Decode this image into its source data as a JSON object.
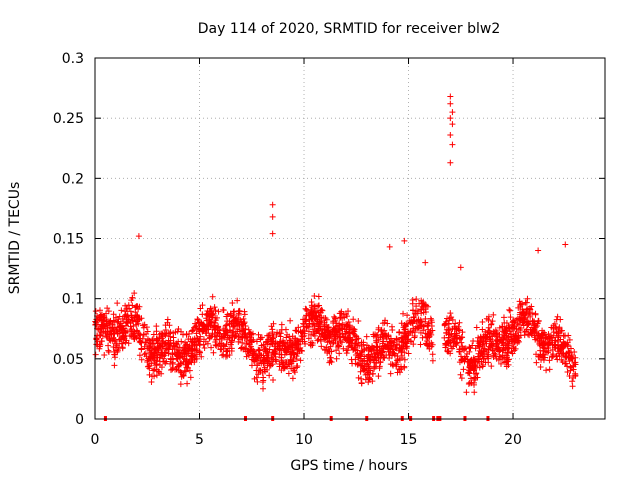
{
  "chart_data": {
    "type": "scatter",
    "title": "Day 114 of 2020, SRMTID for receiver blw2",
    "xlabel": "GPS time / hours",
    "ylabel": "SRMTID / TECUs",
    "xlim": [
      0,
      24.4
    ],
    "ylim": [
      0,
      0.3
    ],
    "xticks": [
      0,
      5,
      10,
      15,
      20
    ],
    "xtick_labels": [
      "0",
      "5",
      "10",
      "15",
      "20"
    ],
    "yticks": [
      0,
      0.05,
      0.1,
      0.15,
      0.2,
      0.25,
      0.3
    ],
    "ytick_labels": [
      "0",
      "0.05",
      "0.1",
      "0.15",
      "0.2",
      "0.25",
      "0.3"
    ],
    "grid": true,
    "marker": "+",
    "color": "#ff0000",
    "series": [
      {
        "name": "SRMTID",
        "x_range": [
          0,
          23
        ],
        "typical_range": [
          0.02,
          0.11
        ]
      }
    ],
    "peaks": [
      {
        "x": 2.1,
        "y": 0.152
      },
      {
        "x": 8.5,
        "y": 0.178
      },
      {
        "x": 8.5,
        "y": 0.168
      },
      {
        "x": 8.5,
        "y": 0.154
      },
      {
        "x": 14.1,
        "y": 0.143
      },
      {
        "x": 14.8,
        "y": 0.148
      },
      {
        "x": 15.8,
        "y": 0.13
      },
      {
        "x": 17.0,
        "y": 0.268
      },
      {
        "x": 17.0,
        "y": 0.262
      },
      {
        "x": 17.1,
        "y": 0.255
      },
      {
        "x": 17.0,
        "y": 0.25
      },
      {
        "x": 17.1,
        "y": 0.245
      },
      {
        "x": 17.0,
        "y": 0.236
      },
      {
        "x": 17.1,
        "y": 0.228
      },
      {
        "x": 17.0,
        "y": 0.213
      },
      {
        "x": 17.5,
        "y": 0.126
      },
      {
        "x": 21.2,
        "y": 0.14
      },
      {
        "x": 22.5,
        "y": 0.145
      }
    ],
    "gaps": [
      [
        16.2,
        16.7
      ],
      [
        23.0,
        24.4
      ]
    ],
    "baseline_markers_x": [
      0.5,
      7.2,
      8.5,
      11.3,
      13.0,
      14.7,
      15.1,
      16.2,
      16.4,
      16.5,
      17.7,
      18.8
    ]
  }
}
